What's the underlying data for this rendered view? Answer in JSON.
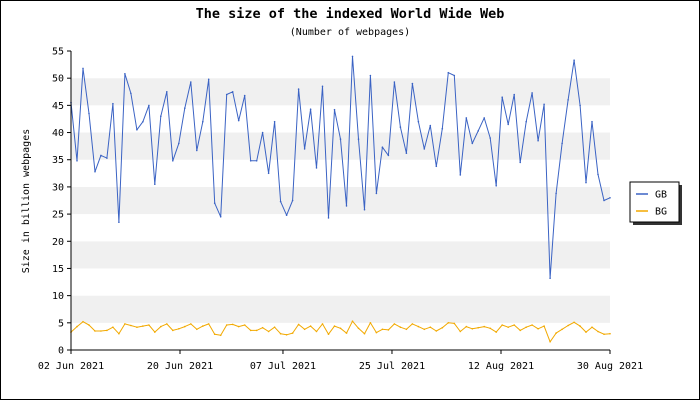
{
  "chart_data": {
    "type": "line",
    "title": "The size of the indexed World Wide Web",
    "subtitle": "(Number of webpages)",
    "ylabel": "Size in billion webpages",
    "xlabel": "",
    "ylim": [
      0,
      55
    ],
    "yticks": [
      0,
      5,
      10,
      15,
      20,
      25,
      30,
      35,
      40,
      45,
      50,
      55
    ],
    "grid": "horizontal alternating bands",
    "legend_position": "right",
    "x_ticks": [
      "02 Jun 2021",
      "20 Jun 2021",
      "07 Jul 2021",
      "25 Jul 2021",
      "12 Aug 2021",
      "30 Aug 2021"
    ],
    "x_start": "2021-06-02",
    "x_end": "2021-08-30",
    "series": [
      {
        "name": "GB",
        "color": "#3b63c4",
        "values": [
          45.5,
          34.8,
          51.8,
          43.5,
          32.8,
          35.8,
          35.3,
          45.3,
          23.5,
          50.8,
          47.2,
          40.5,
          42.0,
          45.0,
          30.5,
          43.0,
          47.5,
          34.8,
          38.0,
          44.5,
          49.3,
          36.7,
          42.0,
          49.8,
          27.0,
          24.5,
          47.0,
          47.5,
          42.2,
          46.8,
          34.8,
          34.8,
          40.0,
          32.5,
          42.0,
          27.3,
          24.8,
          27.5,
          48.0,
          37.0,
          44.3,
          33.5,
          48.5,
          24.3,
          44.2,
          38.8,
          26.5,
          54.0,
          38.8,
          25.8,
          50.5,
          28.8,
          37.3,
          35.8,
          49.3,
          41.0,
          36.2,
          49.0,
          42.0,
          37.0,
          41.3,
          33.8,
          40.7,
          51.0,
          50.5,
          32.2,
          42.7,
          38.0,
          40.3,
          42.7,
          39.0,
          30.2,
          46.5,
          41.5,
          47.0,
          34.5,
          42.0,
          47.3,
          38.5,
          45.2,
          13.2,
          28.8,
          38.0,
          46.0,
          53.3,
          45.0,
          30.8,
          42.0,
          32.3,
          27.5,
          28.0
        ]
      },
      {
        "name": "BG",
        "color": "#f2a900",
        "values": [
          3.3,
          4.3,
          5.2,
          4.6,
          3.5,
          3.5,
          3.6,
          4.2,
          3.0,
          4.8,
          4.5,
          4.2,
          4.4,
          4.6,
          3.3,
          4.3,
          4.8,
          3.6,
          3.9,
          4.3,
          4.8,
          3.8,
          4.4,
          4.8,
          2.9,
          2.7,
          4.6,
          4.7,
          4.3,
          4.6,
          3.6,
          3.6,
          4.1,
          3.4,
          4.2,
          3.0,
          2.8,
          3.1,
          4.7,
          3.8,
          4.4,
          3.4,
          4.8,
          2.9,
          4.4,
          4.0,
          3.1,
          5.3,
          4.0,
          3.0,
          5.0,
          3.2,
          3.8,
          3.7,
          4.8,
          4.2,
          3.8,
          4.8,
          4.3,
          3.8,
          4.2,
          3.5,
          4.1,
          5.0,
          4.9,
          3.4,
          4.3,
          3.9,
          4.1,
          4.3,
          4.0,
          3.3,
          4.6,
          4.2,
          4.6,
          3.6,
          4.2,
          4.6,
          3.9,
          4.4,
          1.5,
          3.1,
          3.8,
          4.5,
          5.1,
          4.4,
          3.3,
          4.2,
          3.4,
          2.9,
          3.0
        ]
      }
    ]
  }
}
